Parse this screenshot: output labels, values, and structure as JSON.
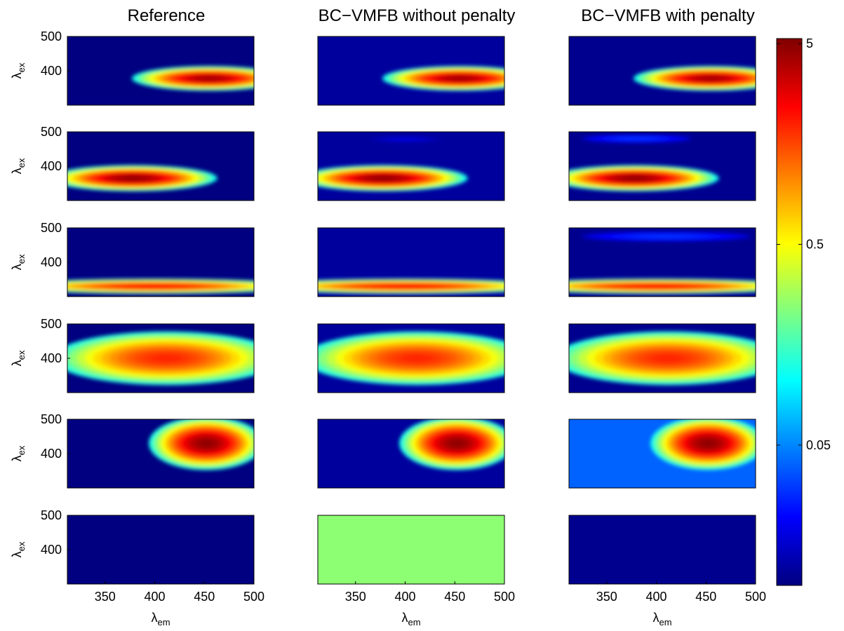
{
  "chart_data": {
    "type": "heatmap",
    "column_titles": [
      "Reference",
      "BC−VMFB without penalty",
      "BC−VMFB with penalty"
    ],
    "xlabel": {
      "symbol": "λ",
      "sub": "em"
    },
    "ylabel": {
      "symbol": "λ",
      "sub": "ex"
    },
    "xlim": [
      312,
      500
    ],
    "ylim": [
      300,
      500
    ],
    "xticks": [
      350,
      400,
      450,
      500
    ],
    "yticks": [
      400,
      500
    ],
    "colorbar": {
      "scale": "log",
      "colormap": "jet",
      "lim": [
        0.01,
        5.3
      ],
      "ticks": [
        0.05,
        0.5,
        5
      ]
    },
    "panels": [
      [
        {
          "background": 0.01,
          "blobs": [
            {
              "em": 455,
              "ex": 378,
              "w": 78,
              "h": 36,
              "peak": 4.5
            }
          ]
        },
        {
          "background": 0.01,
          "blobs": [
            {
              "em": 378,
              "ex": 365,
              "w": 85,
              "h": 38,
              "peak": 5
            }
          ]
        },
        {
          "background": 0.01,
          "blobs": [
            {
              "em": 400,
              "ex": 330,
              "w": 150,
              "h": 22,
              "peak": 2.5
            }
          ]
        },
        {
          "background": 0.01,
          "blobs": [
            {
              "em": 412,
              "ex": 400,
              "w": 115,
              "h": 78,
              "peak": 2
            }
          ]
        },
        {
          "background": 0.01,
          "blobs": [
            {
              "em": 452,
              "ex": 430,
              "w": 58,
              "h": 78,
              "peak": 5
            }
          ]
        },
        {
          "background": 0.01,
          "blobs": []
        }
      ],
      [
        {
          "background": 0.012,
          "blobs": [
            {
              "em": 455,
              "ex": 378,
              "w": 78,
              "h": 36,
              "peak": 4.5
            }
          ]
        },
        {
          "background": 0.012,
          "blobs": [
            {
              "em": 400,
              "ex": 478,
              "w": 40,
              "h": 8,
              "peak": 0.02
            },
            {
              "em": 378,
              "ex": 365,
              "w": 85,
              "h": 38,
              "peak": 5
            }
          ]
        },
        {
          "background": 0.012,
          "blobs": [
            {
              "em": 400,
              "ex": 330,
              "w": 150,
              "h": 22,
              "peak": 2.5
            }
          ]
        },
        {
          "background": 0.012,
          "blobs": [
            {
              "em": 412,
              "ex": 400,
              "w": 115,
              "h": 78,
              "peak": 2
            }
          ]
        },
        {
          "background": 0.012,
          "blobs": [
            {
              "em": 452,
              "ex": 430,
              "w": 58,
              "h": 78,
              "peak": 5
            }
          ]
        },
        {
          "background": 0.25,
          "blobs": []
        }
      ],
      [
        {
          "background": 0.011,
          "blobs": [
            {
              "em": 455,
              "ex": 378,
              "w": 78,
              "h": 36,
              "peak": 4.5
            }
          ]
        },
        {
          "background": 0.011,
          "blobs": [
            {
              "em": 380,
              "ex": 480,
              "w": 55,
              "h": 12,
              "peak": 0.03
            },
            {
              "em": 378,
              "ex": 365,
              "w": 85,
              "h": 38,
              "peak": 5
            }
          ]
        },
        {
          "background": 0.011,
          "blobs": [
            {
              "em": 410,
              "ex": 475,
              "w": 85,
              "h": 14,
              "peak": 0.03
            },
            {
              "em": 400,
              "ex": 330,
              "w": 150,
              "h": 22,
              "peak": 2.5
            }
          ]
        },
        {
          "background": 0.011,
          "blobs": [
            {
              "em": 412,
              "ex": 400,
              "w": 115,
              "h": 78,
              "peak": 2
            }
          ]
        },
        {
          "background": 0.04,
          "blobs": [
            {
              "em": 452,
              "ex": 430,
              "w": 58,
              "h": 78,
              "peak": 5
            }
          ]
        },
        {
          "background": 0.011,
          "blobs": []
        }
      ]
    ]
  }
}
